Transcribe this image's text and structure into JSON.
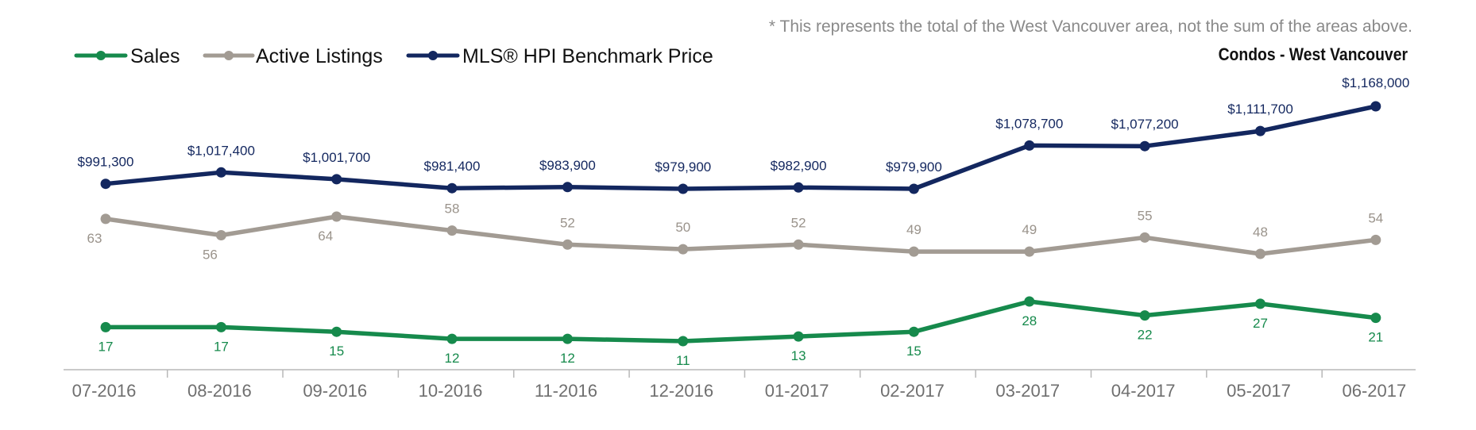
{
  "footnote": "* This represents the total of the West Vancouver area, not the sum of the areas above.",
  "subtitle": "Condos - West Vancouver",
  "chart_data": {
    "type": "line",
    "categories": [
      "07-2016",
      "08-2016",
      "09-2016",
      "10-2016",
      "11-2016",
      "12-2016",
      "01-2017",
      "02-2017",
      "03-2017",
      "04-2017",
      "05-2017",
      "06-2017"
    ],
    "legend_position": "top-left",
    "grid": false,
    "series": [
      {
        "name": "Sales",
        "color": "#168a4c",
        "values": [
          17,
          17,
          15,
          12,
          12,
          11,
          13,
          15,
          28,
          22,
          27,
          21
        ],
        "labels": [
          "17",
          "17",
          "15",
          "12",
          "12",
          "11",
          "13",
          "15",
          "28",
          "22",
          "27",
          "21"
        ]
      },
      {
        "name": "Active Listings",
        "color": "#a29b93",
        "values": [
          63,
          56,
          64,
          58,
          52,
          50,
          52,
          49,
          49,
          55,
          48,
          54
        ],
        "labels": [
          "63",
          "56",
          "64",
          "58",
          "52",
          "50",
          "52",
          "49",
          "49",
          "55",
          "48",
          "54"
        ]
      },
      {
        "name": "MLS® HPI Benchmark Price",
        "color": "#13275f",
        "values": [
          991300,
          1017400,
          1001700,
          981400,
          983900,
          979900,
          982900,
          979900,
          1078700,
          1077200,
          1111700,
          1168000
        ],
        "labels": [
          "$991,300",
          "$1,017,400",
          "$1,001,700",
          "$981,400",
          "$983,900",
          "$979,900",
          "$982,900",
          "$979,900",
          "$1,078,700",
          "$1,077,200",
          "$1,111,700",
          "$1,168,000"
        ]
      }
    ]
  }
}
